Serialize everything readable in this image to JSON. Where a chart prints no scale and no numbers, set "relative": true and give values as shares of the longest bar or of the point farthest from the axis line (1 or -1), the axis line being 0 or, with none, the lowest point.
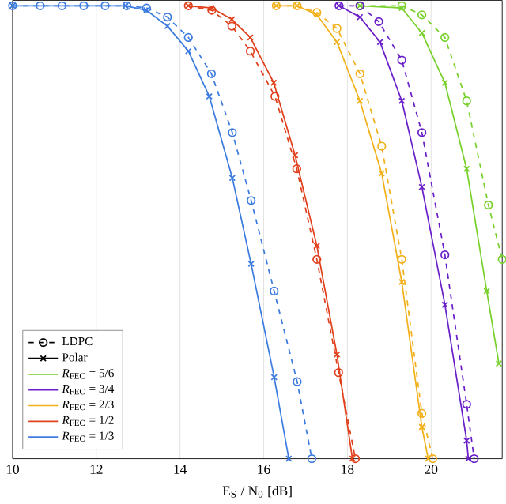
{
  "chart_data": {
    "type": "line",
    "relative": true,
    "xlabel": "E$_{S}$ / N$_{0}$ [dB]",
    "xlim": [
      10,
      21.7
    ],
    "xticks": [
      10,
      12,
      14,
      16,
      18,
      20
    ],
    "grid": "x",
    "legend": "bottom left",
    "tick_labels": "x",
    "series": [
      {
        "name": "LDPC",
        "color": "#000000",
        "line_style": "dashed",
        "marker": "circle"
      },
      {
        "name": "Polar",
        "color": "#000000",
        "line_style": "solid",
        "marker": "cross"
      },
      {
        "color": "#77d12a",
        "line_style": "dashed",
        "marker": "circle",
        "x": [
          18.3,
          19.3,
          19.78,
          20.33,
          20.85,
          21.37,
          21.7
        ],
        "values": [
          1,
          1,
          0.98,
          0.93,
          0.79,
          0.56,
          0.44
        ]
      },
      {
        "name": "*R*$_{FEC}$ = 5/6",
        "color": "#77d12a",
        "line_style": "solid",
        "marker": "cross",
        "x": [
          18.3,
          19.3,
          19.78,
          20.33,
          20.85,
          21.33,
          21.62
        ],
        "values": [
          1,
          0.995,
          0.94,
          0.83,
          0.64,
          0.37,
          0.21
        ]
      },
      {
        "color": "#6a1fc9",
        "line_style": "dashed",
        "marker": "circle",
        "x": [
          17.8,
          18.3,
          18.75,
          19.3,
          19.78,
          20.33,
          20.85,
          21.03
        ],
        "values": [
          1,
          1,
          0.965,
          0.88,
          0.72,
          0.45,
          0.12,
          0
        ]
      },
      {
        "name": "*R*$_{FEC}$ = 3/4",
        "color": "#6a1fc9",
        "line_style": "solid",
        "marker": "cross",
        "x": [
          17.8,
          18.3,
          18.78,
          19.3,
          19.78,
          20.33,
          20.85,
          20.89
        ],
        "values": [
          1,
          0.975,
          0.92,
          0.79,
          0.6,
          0.34,
          0.04,
          0
        ]
      },
      {
        "color": "#f2b01a",
        "line_style": "dashed",
        "marker": "circle",
        "x": [
          16.3,
          16.8,
          17.27,
          17.75,
          18.3,
          18.82,
          19.3,
          19.78,
          20.04
        ],
        "values": [
          1,
          1,
          0.985,
          0.95,
          0.85,
          0.69,
          0.44,
          0.1,
          0
        ]
      },
      {
        "name": "*R*$_{FEC}$ = 2/3",
        "color": "#f2b01a",
        "line_style": "solid",
        "marker": "cross",
        "x": [
          16.3,
          16.8,
          17.27,
          17.75,
          18.3,
          18.82,
          19.3,
          19.78,
          19.93
        ],
        "values": [
          1,
          1,
          0.98,
          0.92,
          0.79,
          0.63,
          0.39,
          0.07,
          0
        ]
      },
      {
        "name": "*R*$_{FEC}$ = 1/2",
        "color": "#e0401c",
        "line_style": "solid",
        "marker": "cross",
        "x": [
          14.2,
          14.76,
          15.24,
          15.68,
          16.24,
          16.75,
          17.27,
          17.75,
          18.12
        ],
        "values": [
          1,
          0.995,
          0.97,
          0.93,
          0.83,
          0.67,
          0.47,
          0.23,
          0
        ]
      },
      {
        "color": "#e0401c",
        "line_style": "dashed",
        "marker": "circle",
        "x": [
          14.2,
          14.76,
          15.24,
          15.68,
          16.27,
          16.79,
          17.27,
          17.79,
          18.19
        ],
        "values": [
          1,
          0.99,
          0.955,
          0.9,
          0.8,
          0.64,
          0.44,
          0.19,
          0
        ]
      },
      {
        "color": "#3c7be0",
        "line_style": "dashed",
        "marker": "circle",
        "x": [
          10,
          10.66,
          11.18,
          11.7,
          12.21,
          12.73,
          13.2,
          13.7,
          14.2,
          14.75,
          15.25,
          15.7,
          16.25,
          16.8,
          17.15
        ],
        "values": [
          1,
          1,
          1,
          1,
          1,
          1,
          0.995,
          0.975,
          0.93,
          0.85,
          0.72,
          0.57,
          0.37,
          0.17,
          0
        ]
      },
      {
        "name": "*R*$_{FEC}$ = 1/3",
        "color": "#3c7be0",
        "line_style": "solid",
        "marker": "cross",
        "x": [
          10,
          12.7,
          13.2,
          13.7,
          14.2,
          14.7,
          15.25,
          15.7,
          16.25,
          16.6
        ],
        "values": [
          1,
          1,
          0.99,
          0.955,
          0.9,
          0.8,
          0.62,
          0.43,
          0.18,
          0
        ]
      }
    ]
  }
}
